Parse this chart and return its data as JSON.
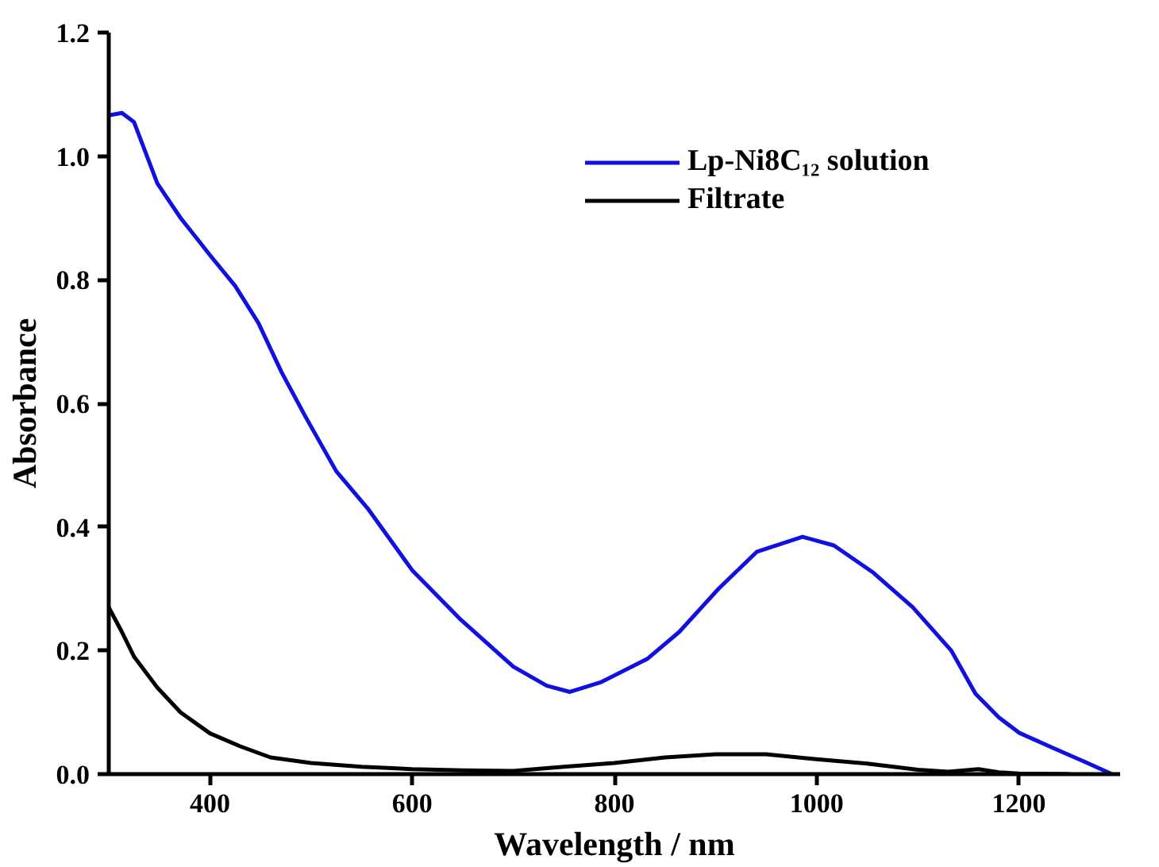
{
  "chart_data": {
    "type": "line",
    "xlabel": "Wavelength / nm",
    "ylabel": "Absorbance",
    "xlim": [
      300,
      1300
    ],
    "ylim": [
      0,
      1.2
    ],
    "xticks": [
      400,
      600,
      800,
      1000,
      1200
    ],
    "yticks": [
      {
        "value": 0,
        "label": "0.0"
      },
      0.2,
      0.4,
      0.6,
      0.8,
      {
        "value": 1,
        "label": "1.0"
      },
      1.2
    ],
    "grid": false,
    "legend": "top right",
    "marker": "none",
    "line_style": "solid",
    "series": [
      {
        "name": "Lp-Ni8C₁₂ solution",
        "color": "#1010e0",
        "x": [
          300,
          313,
          325,
          348,
          371,
          400,
          425,
          448,
          471,
          494,
          525,
          556,
          600,
          648,
          700,
          733,
          756,
          787,
          833,
          864,
          903,
          941,
          986,
          1017,
          1056,
          1095,
          1133,
          1157,
          1180,
          1200,
          1234,
          1265,
          1292
        ],
        "values": [
          1.066,
          1.07,
          1.055,
          0.956,
          0.9,
          0.84,
          0.79,
          0.73,
          0.65,
          0.58,
          0.49,
          0.43,
          0.33,
          0.25,
          0.174,
          0.143,
          0.133,
          0.149,
          0.187,
          0.23,
          0.3,
          0.36,
          0.384,
          0.37,
          0.326,
          0.27,
          0.2,
          0.13,
          0.092,
          0.067,
          0.042,
          0.02,
          0
        ]
      },
      {
        "name": "Filtrate",
        "color": "#000000",
        "x": [
          300,
          313,
          325,
          348,
          371,
          400,
          430,
          460,
          500,
          550,
          600,
          650,
          700,
          750,
          800,
          850,
          900,
          950,
          1000,
          1050,
          1100,
          1130,
          1160,
          1180,
          1200,
          1250
        ],
        "values": [
          0.27,
          0.23,
          0.19,
          0.14,
          0.1,
          0.066,
          0.045,
          0.027,
          0.018,
          0.012,
          0.008,
          0.006,
          0.005,
          0.012,
          0.018,
          0.027,
          0.032,
          0.032,
          0.024,
          0.017,
          0.007,
          0.004,
          0.008,
          0.003,
          0.001,
          0
        ]
      }
    ]
  }
}
